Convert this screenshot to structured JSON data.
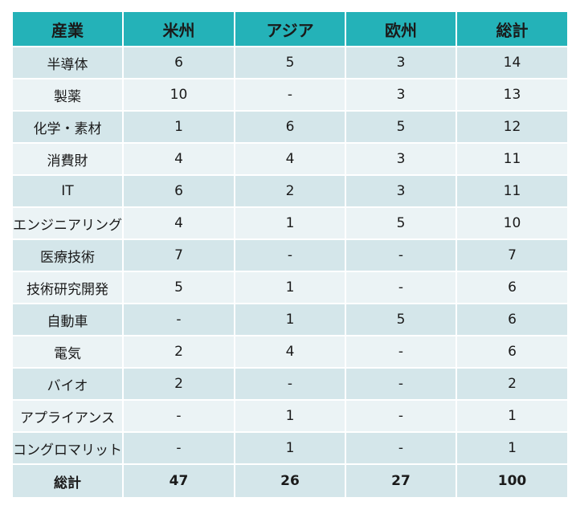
{
  "table": {
    "header_color": "#24b2b8",
    "headers": [
      "産業",
      "米州",
      "アジア",
      "欧州",
      "総計"
    ],
    "rows": [
      [
        "半導体",
        "6",
        "5",
        "3",
        "14"
      ],
      [
        "製薬",
        "10",
        "-",
        "3",
        "13"
      ],
      [
        "化学・素材",
        "1",
        "6",
        "5",
        "12"
      ],
      [
        "消費財",
        "4",
        "4",
        "3",
        "11"
      ],
      [
        "IT",
        "6",
        "2",
        "3",
        "11"
      ],
      [
        "エンジニアリング",
        "4",
        "1",
        "5",
        "10"
      ],
      [
        "医療技術",
        "7",
        "-",
        "-",
        "7"
      ],
      [
        "技術研究開発",
        "5",
        "1",
        "-",
        "6"
      ],
      [
        "自動車",
        "-",
        "1",
        "5",
        "6"
      ],
      [
        "電気",
        "2",
        "4",
        "-",
        "6"
      ],
      [
        "バイオ",
        "2",
        "-",
        "-",
        "2"
      ],
      [
        "アプライアンス",
        "-",
        "1",
        "-",
        "1"
      ],
      [
        "コングロマリット",
        "-",
        "1",
        "-",
        "1"
      ]
    ],
    "total_row": [
      "総計",
      "47",
      "26",
      "27",
      "100"
    ]
  }
}
